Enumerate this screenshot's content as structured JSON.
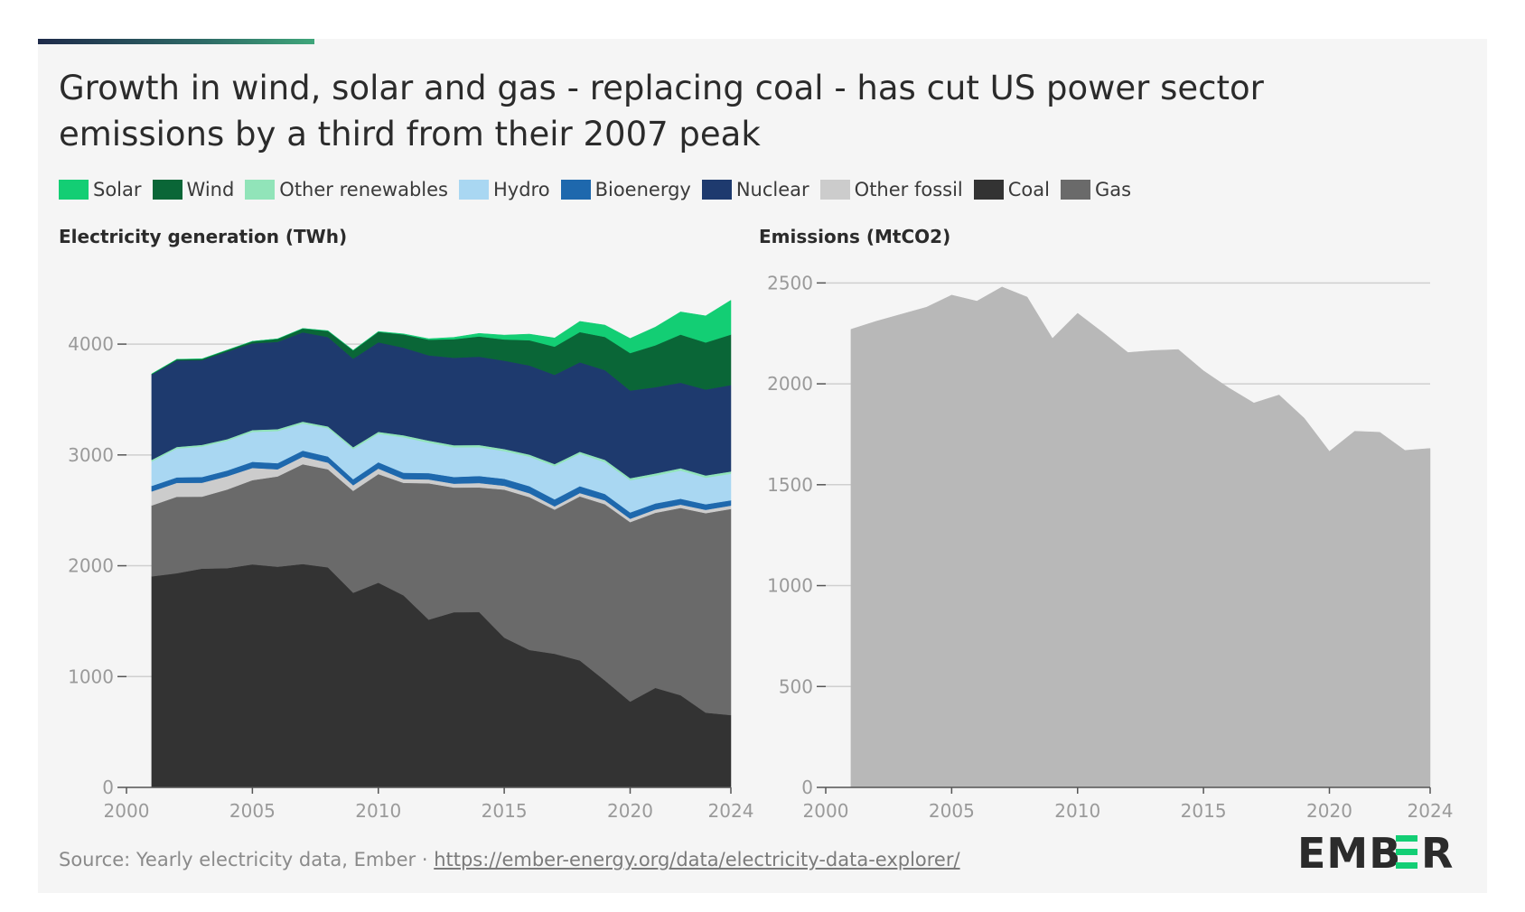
{
  "title": "Growth in wind, solar and gas - replacing coal - has cut US power sector emissions by a third from their 2007 peak",
  "legend": [
    {
      "label": "Solar",
      "color": "#13ce74"
    },
    {
      "label": "Wind",
      "color": "#0a6637"
    },
    {
      "label": "Other renewables",
      "color": "#91e4b9"
    },
    {
      "label": "Hydro",
      "color": "#a9d7f2"
    },
    {
      "label": "Bioenergy",
      "color": "#1e68ad"
    },
    {
      "label": "Nuclear",
      "color": "#1e3a6e"
    },
    {
      "label": "Other fossil",
      "color": "#cccccc"
    },
    {
      "label": "Coal",
      "color": "#333333"
    },
    {
      "label": "Gas",
      "color": "#6a6a6a"
    }
  ],
  "source": {
    "prefix": "Source: Yearly electricity data, Ember · ",
    "link": "https://ember-energy.org/data/electricity-data-explorer/"
  },
  "logo": {
    "text": "EMBER",
    "accent_color": "#13ce74"
  },
  "chart_data": [
    {
      "type": "area",
      "stacked": true,
      "title": "Electricity generation (TWh)",
      "x": [
        2001,
        2002,
        2003,
        2004,
        2005,
        2006,
        2007,
        2008,
        2009,
        2010,
        2011,
        2012,
        2013,
        2014,
        2015,
        2016,
        2017,
        2018,
        2019,
        2020,
        2021,
        2022,
        2023,
        2024
      ],
      "xlim": [
        2000,
        2024
      ],
      "xticks": [
        2000,
        2005,
        2010,
        2015,
        2020,
        2024
      ],
      "ylim": [
        0,
        4400
      ],
      "yticks": [
        0,
        1000,
        2000,
        3000,
        4000
      ],
      "grid": true,
      "series": [
        {
          "name": "Coal",
          "color": "#333333",
          "values": [
            1904,
            1933,
            1974,
            1978,
            2013,
            1991,
            2016,
            1986,
            1756,
            1847,
            1733,
            1514,
            1581,
            1582,
            1352,
            1240,
            1206,
            1146,
            965,
            774,
            898,
            832,
            675,
            653
          ]
        },
        {
          "name": "Gas",
          "color": "#6a6a6a",
          "values": [
            640,
            690,
            650,
            710,
            760,
            815,
            900,
            885,
            920,
            980,
            1015,
            1230,
            1125,
            1125,
            1335,
            1380,
            1300,
            1480,
            1590,
            1620,
            1580,
            1690,
            1800,
            1860
          ]
        },
        {
          "name": "Other fossil",
          "color": "#cccccc",
          "values": [
            127,
            125,
            125,
            120,
            110,
            65,
            68,
            60,
            50,
            50,
            35,
            35,
            35,
            40,
            35,
            35,
            30,
            30,
            35,
            30,
            30,
            30,
            30,
            30
          ]
        },
        {
          "name": "Bioenergy",
          "color": "#1e68ad",
          "values": [
            50,
            50,
            52,
            52,
            55,
            55,
            55,
            55,
            55,
            57,
            57,
            57,
            60,
            63,
            63,
            63,
            63,
            62,
            58,
            57,
            55,
            53,
            50,
            48
          ]
        },
        {
          "name": "Hydro",
          "color": "#a9d7f2",
          "values": [
            220,
            260,
            275,
            268,
            270,
            290,
            245,
            255,
            272,
            257,
            320,
            275,
            268,
            260,
            250,
            267,
            300,
            292,
            288,
            290,
            250,
            255,
            240,
            240
          ]
        },
        {
          "name": "Other renewables",
          "color": "#91e4b9",
          "values": [
            15,
            15,
            15,
            15,
            17,
            17,
            17,
            17,
            17,
            18,
            18,
            19,
            19,
            20,
            19,
            18,
            19,
            19,
            20,
            20,
            20,
            20,
            20,
            20
          ]
        },
        {
          "name": "Nuclear",
          "color": "#1e3a6e",
          "values": [
            769,
            780,
            764,
            789,
            782,
            787,
            806,
            806,
            799,
            807,
            790,
            769,
            789,
            797,
            797,
            805,
            805,
            807,
            809,
            790,
            778,
            772,
            775,
            780
          ]
        },
        {
          "name": "Wind",
          "color": "#0a6637",
          "values": [
            6,
            10,
            11,
            14,
            18,
            27,
            34,
            55,
            74,
            95,
            120,
            141,
            168,
            182,
            191,
            227,
            254,
            273,
            300,
            338,
            378,
            434,
            425,
            455
          ]
        },
        {
          "name": "Solar",
          "color": "#13ce74",
          "values": [
            1,
            1,
            1,
            1,
            1,
            1,
            1,
            2,
            2,
            3,
            5,
            9,
            16,
            28,
            39,
            55,
            78,
            96,
            107,
            132,
            165,
            205,
            240,
            310
          ]
        }
      ]
    },
    {
      "type": "area",
      "title": "Emissions (MtCO2)",
      "x": [
        2001,
        2002,
        2003,
        2004,
        2005,
        2006,
        2007,
        2008,
        2009,
        2010,
        2011,
        2012,
        2013,
        2014,
        2015,
        2016,
        2017,
        2018,
        2019,
        2020,
        2021,
        2022,
        2023,
        2024
      ],
      "xlim": [
        2000,
        2024
      ],
      "xticks": [
        2000,
        2005,
        2010,
        2015,
        2020,
        2024
      ],
      "ylim": [
        0,
        2600
      ],
      "yticks": [
        0,
        500,
        1000,
        1500,
        2000,
        2500
      ],
      "grid": true,
      "series": [
        {
          "name": "Emissions",
          "color": "#b8b8b8",
          "values": [
            2270,
            2310,
            2345,
            2380,
            2440,
            2410,
            2480,
            2430,
            2225,
            2350,
            2255,
            2155,
            2165,
            2170,
            2065,
            1980,
            1905,
            1945,
            1830,
            1665,
            1765,
            1760,
            1670,
            1680
          ]
        }
      ]
    }
  ]
}
